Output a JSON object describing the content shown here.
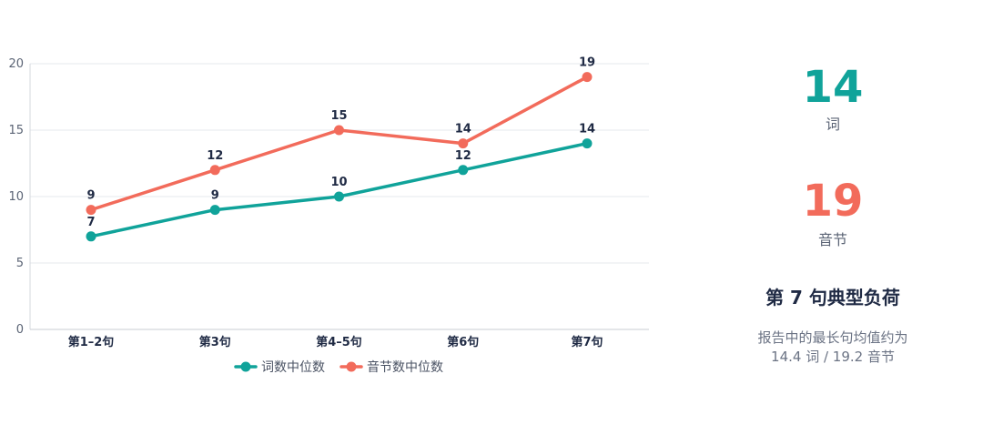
{
  "chart_data": {
    "type": "line",
    "categories": [
      "第1–2句",
      "第3句",
      "第4–5句",
      "第6句",
      "第7句"
    ],
    "series": [
      {
        "name": "词数中位数",
        "values": [
          7,
          9,
          10,
          12,
          14
        ],
        "color": "#10a39a"
      },
      {
        "name": "音节数中位数",
        "values": [
          9,
          12,
          15,
          14,
          19
        ],
        "color": "#f26b5b"
      }
    ],
    "ylim": [
      0,
      20
    ],
    "yticks": [
      0,
      5,
      10,
      15,
      20
    ],
    "grid": true,
    "legend": "bottom",
    "title": "",
    "xlabel": "",
    "ylabel": ""
  },
  "stats": {
    "words": {
      "value": "14",
      "unit": "词",
      "color": "#10a39a"
    },
    "syllables": {
      "value": "19",
      "unit": "音节",
      "color": "#f26b5b"
    }
  },
  "summary": {
    "title": "第 7 句典型负荷",
    "note_line1": "报告中的最长句均值约为",
    "note_line2": "14.4 词 / 19.2 音节"
  }
}
